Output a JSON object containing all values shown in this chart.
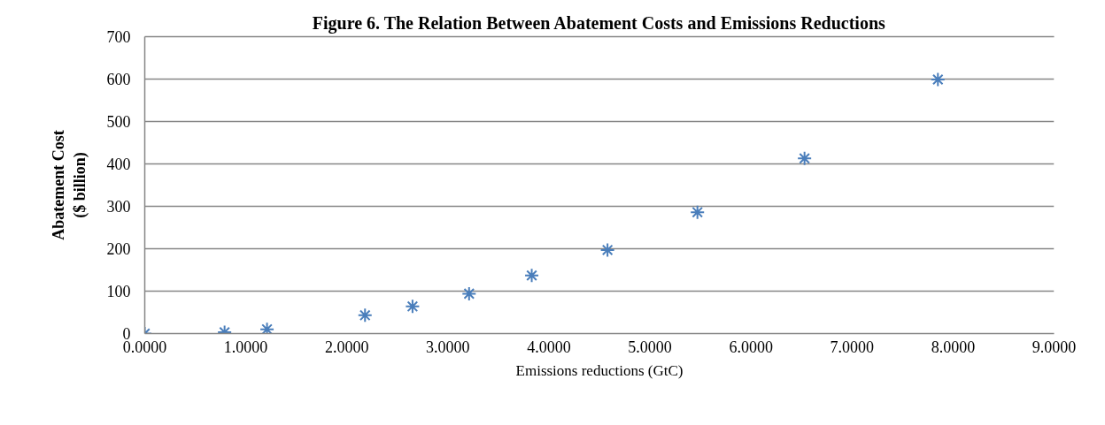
{
  "chart_data": {
    "type": "scatter",
    "title": "Figure 6. The Relation Between Abatement Costs and Emissions Reductions",
    "xlabel": "Emissions reductions (GtC)",
    "ylabel": "Abatement Cost ($ billion)",
    "x": [
      0,
      0.79,
      1.21,
      2.18,
      2.65,
      3.21,
      3.83,
      4.58,
      5.47,
      6.53,
      7.85
    ],
    "series": [
      {
        "color": "#4a7ebb",
        "values": [
          0,
          3,
          10,
          43,
          64,
          94,
          137,
          197,
          286,
          413,
          599
        ]
      }
    ],
    "xlim": [
      0,
      9
    ],
    "xticks": [
      {
        "value": 0,
        "label": "0.0000"
      },
      {
        "value": 1,
        "label": "1.0000"
      },
      {
        "value": 2,
        "label": "2.0000"
      },
      {
        "value": 3,
        "label": "3.0000"
      },
      {
        "value": 4,
        "label": "4.0000"
      },
      {
        "value": 5,
        "label": "5.0000"
      },
      {
        "value": 6,
        "label": "6.0000"
      },
      {
        "value": 7,
        "label": "7.0000"
      },
      {
        "value": 8,
        "label": "8.0000"
      },
      {
        "value": 9,
        "label": "9.0000"
      }
    ],
    "ylim": [
      0,
      700
    ],
    "yticks": [
      0,
      100,
      200,
      300,
      400,
      500,
      600,
      700
    ],
    "grid": "y",
    "marker": "cross"
  }
}
